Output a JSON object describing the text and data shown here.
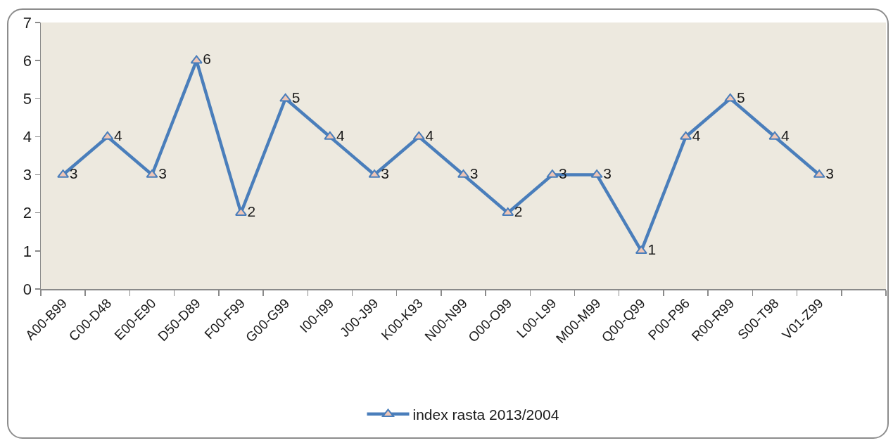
{
  "chart_data": {
    "type": "line",
    "categories": [
      "A00-B99",
      "C00-D48",
      "E00-E90",
      "D50-D89",
      "F00-F99",
      "G00-G99",
      "I00-I99",
      "J00-J99",
      "K00-K93",
      "N00-N99",
      "O00-O99",
      "L00-L99",
      "M00-M99",
      "Q00-Q99",
      "P00-P96",
      "R00-R99",
      "S00-T98",
      "V01-Z99",
      null
    ],
    "series": [
      {
        "name": "index rasta 2013/2004",
        "color": "#4a7ebb",
        "values": [
          3,
          4,
          3,
          6,
          2,
          5,
          4,
          3,
          4,
          3,
          2,
          3,
          3,
          1,
          4,
          5,
          4,
          3,
          null
        ]
      }
    ],
    "ylim": [
      0,
      7
    ],
    "yticks": [
      0,
      1,
      2,
      3,
      4,
      5,
      6,
      7
    ],
    "legend": "bottom",
    "marker": "triangle",
    "line_style": "solid",
    "data_labels": true
  }
}
